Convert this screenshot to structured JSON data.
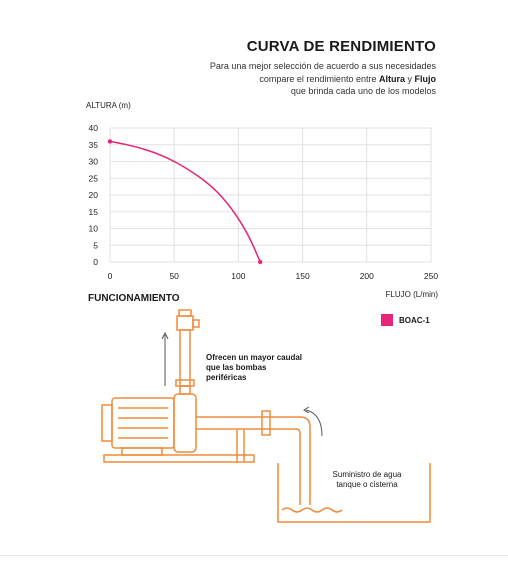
{
  "header": {
    "title": "CURVA DE RENDIMIENTO",
    "subtitle_line1": "Para una mejor selección de acuerdo a sus necesidades",
    "subtitle_line2_pre": "compare el rendimiento entre ",
    "subtitle_bold1": "Altura",
    "subtitle_mid": " y ",
    "subtitle_bold2": "Flujo",
    "subtitle_line3": "que brinda cada uno de los modelos"
  },
  "chart_data": {
    "type": "line",
    "xlabel": "FLUJO (L/min)",
    "ylabel": "ALTURA (m)",
    "xlim": [
      0,
      250
    ],
    "ylim": [
      0,
      40
    ],
    "xticks": [
      0,
      50,
      100,
      150,
      200,
      250
    ],
    "yticks": [
      0,
      5,
      10,
      15,
      20,
      25,
      30,
      35,
      40
    ],
    "grid": true,
    "legend_position": "right",
    "series": [
      {
        "name": "BOAC-1",
        "color": "#e5257a",
        "points": [
          [
            0,
            36
          ],
          [
            20,
            34.5
          ],
          [
            40,
            32
          ],
          [
            60,
            28
          ],
          [
            80,
            22.5
          ],
          [
            95,
            16
          ],
          [
            108,
            8
          ],
          [
            117,
            0
          ]
        ]
      }
    ]
  },
  "section": {
    "title": "FUNCIONAMIENTO"
  },
  "diagram": {
    "note": "Ofrecen un mayor caudal que las bombas periféricas",
    "supply": "Suministro de agua tanque o cisterna",
    "line_color": "#f08c3c"
  }
}
